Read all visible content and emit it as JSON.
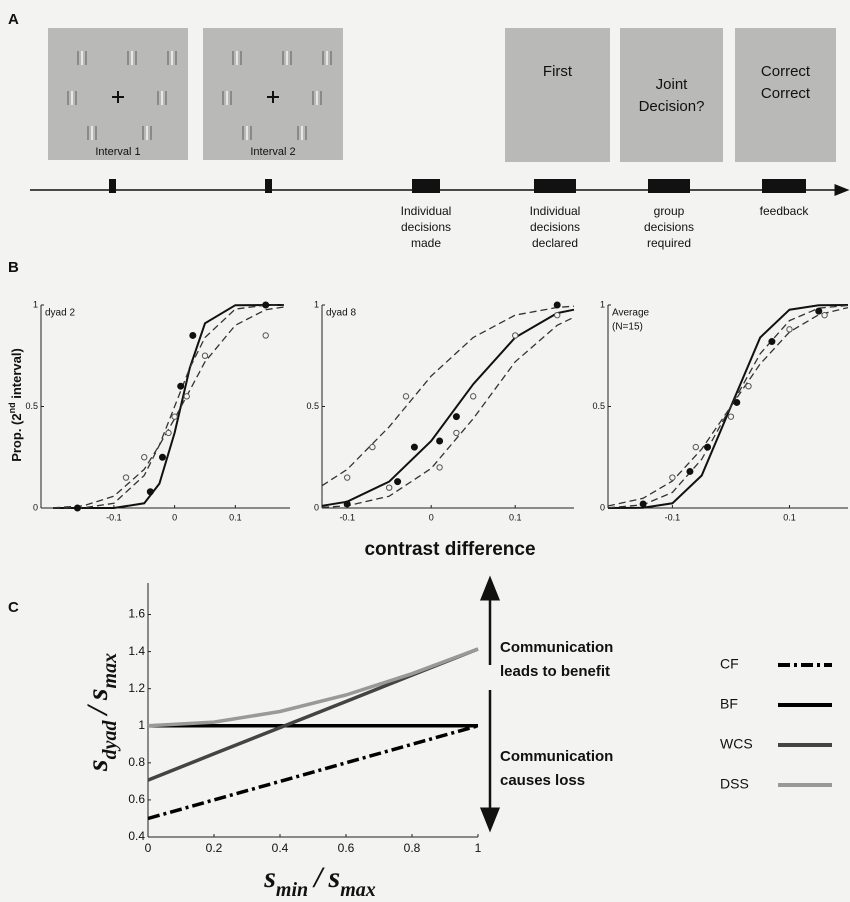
{
  "panel_labels": [
    "A",
    "B",
    "C"
  ],
  "panel_a": {
    "intervals": [
      "Interval 1",
      "Interval 2"
    ],
    "displays": [
      [
        "First"
      ],
      [
        "Joint",
        "Decision?"
      ],
      [
        "Correct",
        "Correct"
      ]
    ],
    "events": [
      [
        "Individual",
        "decisions",
        "made"
      ],
      [
        "Individual",
        "decisions",
        "declared"
      ],
      [
        "group",
        "decisions",
        "required"
      ],
      [
        "feedback"
      ]
    ]
  },
  "shared_ylabel_parts": [
    "Prop. (2",
    "nd",
    " interval)"
  ],
  "shared_xlabel": "contrast difference",
  "chart_data": [
    {
      "type": "line",
      "title": "dyad 2",
      "xlim": [
        -0.22,
        0.19
      ],
      "ylim": [
        0,
        1
      ],
      "xticks": [
        -0.1,
        0,
        0.1
      ],
      "yticks": [
        0,
        0.5,
        1
      ],
      "x": [
        -0.2,
        -0.15,
        -0.1,
        -0.05,
        -0.025,
        0,
        0.025,
        0.05,
        0.1,
        0.15,
        0.18
      ],
      "series": [
        {
          "color": "#111111",
          "dash": "solid",
          "values": [
            0,
            0,
            0.0001,
            0.023,
            0.12,
            0.37,
            0.69,
            0.91,
            0.999,
            1,
            1
          ]
        },
        {
          "color": "#333333",
          "dash": "dashed",
          "values": [
            0,
            0.001,
            0.023,
            0.16,
            0.31,
            0.5,
            0.69,
            0.84,
            0.98,
            0.999,
            1
          ]
        },
        {
          "color": "#333333",
          "dash": "dashed",
          "values": [
            0.001,
            0.011,
            0.058,
            0.19,
            0.31,
            0.44,
            0.58,
            0.72,
            0.9,
            0.977,
            0.99
          ]
        }
      ],
      "points": [
        {
          "marker": "filled",
          "x": [
            -0.16,
            -0.04,
            -0.02,
            0.01,
            0.03,
            0.15
          ],
          "values": [
            0,
            0.08,
            0.25,
            0.6,
            0.85,
            1
          ]
        },
        {
          "marker": "open",
          "x": [
            -0.08,
            -0.05,
            -0.01,
            0,
            0.02,
            0.05,
            0.15
          ],
          "values": [
            0.15,
            0.25,
            0.37,
            0.45,
            0.55,
            0.75,
            0.85
          ]
        }
      ]
    },
    {
      "type": "line",
      "title": "dyad 8",
      "xlim": [
        -0.13,
        0.17
      ],
      "ylim": [
        0,
        1
      ],
      "xticks": [
        -0.1,
        0,
        0.1
      ],
      "yticks": [
        0,
        0.5,
        1
      ],
      "x": [
        -0.13,
        -0.1,
        -0.05,
        0,
        0.05,
        0.1,
        0.15,
        0.17
      ],
      "series": [
        {
          "color": "#111111",
          "dash": "solid",
          "values": [
            0.011,
            0.031,
            0.13,
            0.33,
            0.61,
            0.84,
            0.96,
            0.977
          ]
        },
        {
          "color": "#333333",
          "dash": "dashed",
          "values": [
            0.11,
            0.19,
            0.4,
            0.65,
            0.84,
            0.95,
            0.988,
            0.994
          ]
        },
        {
          "color": "#333333",
          "dash": "dashed",
          "values": [
            0.003,
            0.011,
            0.058,
            0.195,
            0.44,
            0.72,
            0.9,
            0.94
          ]
        }
      ],
      "points": [
        {
          "marker": "filled",
          "x": [
            -0.1,
            -0.04,
            -0.02,
            0.01,
            0.03,
            0.15
          ],
          "values": [
            0.02,
            0.13,
            0.3,
            0.33,
            0.45,
            1
          ]
        },
        {
          "marker": "open",
          "x": [
            -0.1,
            -0.07,
            -0.03,
            -0.05,
            0.01,
            0.03,
            0.05,
            0.1,
            0.15
          ],
          "values": [
            0.15,
            0.3,
            0.55,
            0.1,
            0.2,
            0.37,
            0.55,
            0.85,
            0.95
          ]
        }
      ]
    },
    {
      "type": "line",
      "title": "Average",
      "subtitle": "(N=15)",
      "xlim": [
        -0.21,
        0.2
      ],
      "ylim": [
        0,
        1
      ],
      "xticks": [
        -0.1,
        0.1
      ],
      "yticks": [
        0,
        0.5,
        1
      ],
      "x": [
        -0.21,
        -0.15,
        -0.1,
        -0.05,
        0,
        0.05,
        0.1,
        0.15,
        0.2
      ],
      "series": [
        {
          "color": "#111111",
          "dash": "solid",
          "values": [
            0,
            0.001,
            0.023,
            0.16,
            0.5,
            0.84,
            0.977,
            0.999,
            1
          ]
        },
        {
          "color": "#333333",
          "dash": "dashed",
          "values": [
            0.001,
            0.016,
            0.077,
            0.24,
            0.5,
            0.76,
            0.923,
            0.984,
            0.998
          ]
        },
        {
          "color": "#333333",
          "dash": "dashed",
          "values": [
            0.01,
            0.048,
            0.133,
            0.29,
            0.5,
            0.71,
            0.867,
            0.952,
            0.987
          ]
        }
      ],
      "points": [
        {
          "marker": "filled",
          "x": [
            -0.15,
            -0.07,
            -0.04,
            0.01,
            0.07,
            0.15
          ],
          "values": [
            0.02,
            0.18,
            0.3,
            0.52,
            0.82,
            0.97
          ]
        },
        {
          "marker": "open",
          "x": [
            -0.1,
            -0.06,
            0,
            0.03,
            0.1,
            0.16
          ],
          "values": [
            0.15,
            0.3,
            0.45,
            0.6,
            0.88,
            0.95
          ]
        }
      ]
    },
    {
      "type": "line",
      "xlim": [
        0,
        1
      ],
      "ylim": [
        0.4,
        1.77
      ],
      "xticks": [
        0,
        0.2,
        0.4,
        0.6,
        0.8,
        1
      ],
      "yticks": [
        0.4,
        0.6,
        0.8,
        1,
        1.2,
        1.4,
        1.6
      ],
      "xlabel_parts": [
        "s",
        "min",
        "/",
        "s",
        "max"
      ],
      "ylabel_parts": [
        "s",
        "dyad",
        "/",
        "s",
        "max"
      ],
      "legend": "right",
      "x": [
        0,
        0.2,
        0.4,
        0.6,
        0.8,
        1
      ],
      "series": [
        {
          "name": "CF",
          "color": "#000000",
          "dash": "dashdot",
          "values": [
            0.5,
            0.6,
            0.7,
            0.8,
            0.9,
            1
          ]
        },
        {
          "name": "BF",
          "color": "#000000",
          "dash": "solid",
          "values": [
            1,
            1,
            1,
            1,
            1,
            1
          ]
        },
        {
          "name": "WCS",
          "color": "#444444",
          "dash": "solid",
          "values": [
            0.707,
            0.849,
            0.99,
            1.131,
            1.273,
            1.414
          ]
        },
        {
          "name": "DSS",
          "color": "#999999",
          "dash": "solid",
          "values": [
            1,
            1.02,
            1.077,
            1.166,
            1.281,
            1.414
          ]
        }
      ],
      "annotations": [
        [
          "Communication",
          "leads to benefit"
        ],
        [
          "Communication",
          "causes loss"
        ]
      ]
    }
  ]
}
